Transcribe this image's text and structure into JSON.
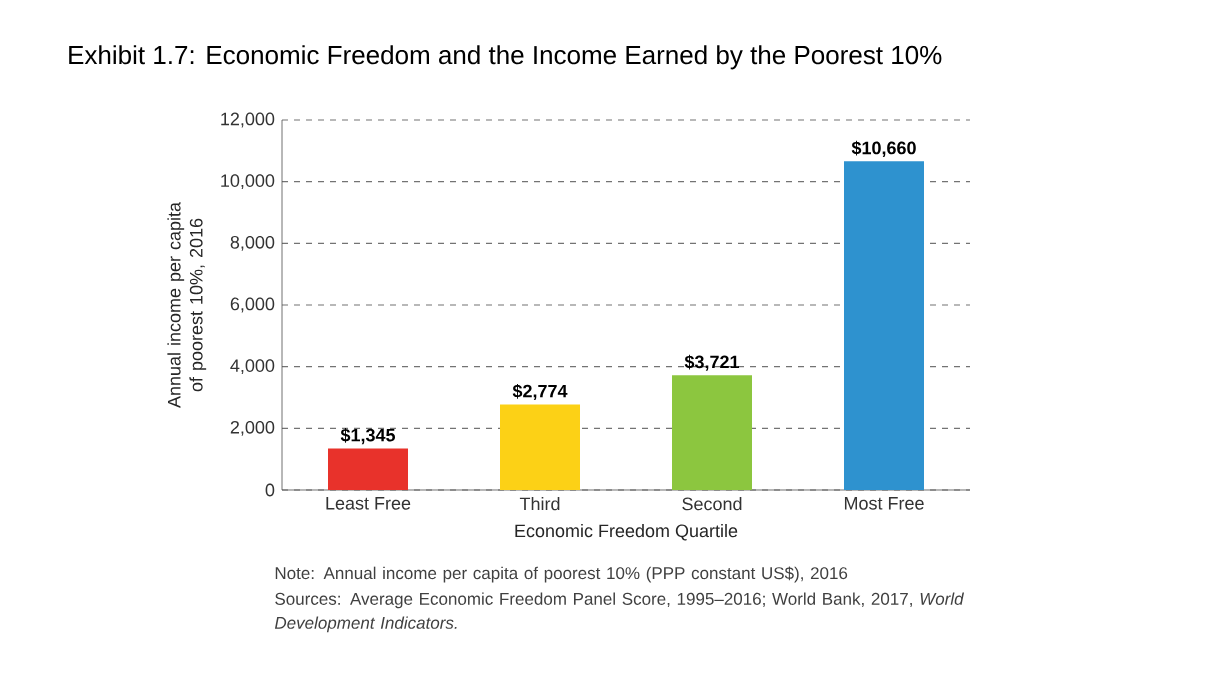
{
  "chart_data": {
    "type": "bar",
    "title": "Exhibit 1.7: Economic Freedom and the Income Earned by the Poorest 10%",
    "xlabel": "Economic Freedom Quartile",
    "ylabel": "Annual income per capita of poorest 10%, 2016",
    "categories": [
      "Least Free",
      "Third",
      "Second",
      "Most Free"
    ],
    "values": [
      1345,
      2774,
      3721,
      10660
    ],
    "colors": [
      "#e8322b",
      "#fcd116",
      "#8cc63f",
      "#2e92cf"
    ],
    "value_labels": [
      "$1,345",
      "$2,774",
      "$3,721",
      "$10,660"
    ],
    "ylim": [
      0,
      12000
    ],
    "yticks": [
      {
        "value": 0,
        "label": "0"
      },
      {
        "value": 2000,
        "label": "2,000"
      },
      {
        "value": 4000,
        "label": "4,000"
      },
      {
        "value": 6000,
        "label": "6,000"
      },
      {
        "value": 8000,
        "label": "8,000"
      },
      {
        "value": 10000,
        "label": "10,000"
      },
      {
        "value": 12000,
        "label": "12,000"
      }
    ],
    "grid": "y",
    "annotations": [
      "Note: Annual income per capita of poorest 10% (PPP constant US$), 2016",
      "Sources: Average Economic Freedom Panel Score, 1995–2016; World Bank, 2017, *World Development Indicators.*"
    ]
  }
}
